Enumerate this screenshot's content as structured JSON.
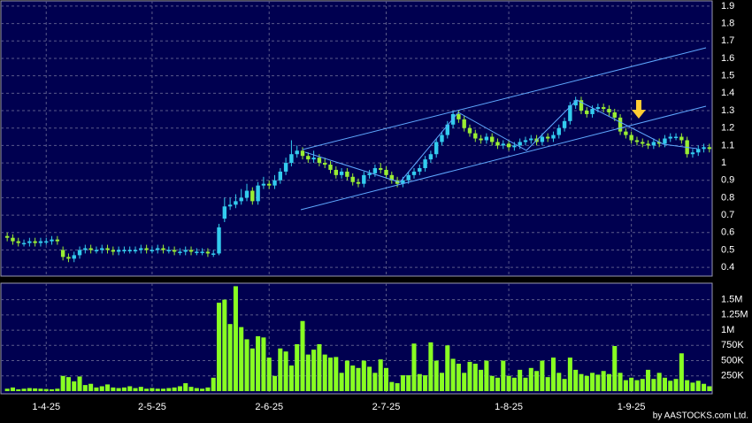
{
  "chart_data": {
    "type": "candlestick",
    "categories": [
      null,
      null,
      null,
      null,
      null,
      null,
      null,
      "1-4-25",
      null,
      null,
      null,
      null,
      null,
      null,
      null,
      null,
      null,
      null,
      null,
      null,
      null,
      null,
      null,
      null,
      null,
      null,
      "2-5-25",
      null,
      null,
      null,
      null,
      null,
      null,
      null,
      null,
      null,
      null,
      null,
      null,
      null,
      null,
      null,
      null,
      null,
      null,
      null,
      null,
      "2-6-25",
      null,
      null,
      null,
      null,
      null,
      null,
      null,
      null,
      null,
      null,
      null,
      null,
      null,
      null,
      null,
      null,
      null,
      null,
      null,
      null,
      "2-7-25",
      null,
      null,
      null,
      null,
      null,
      null,
      null,
      null,
      null,
      null,
      null,
      null,
      null,
      null,
      null,
      null,
      null,
      null,
      null,
      null,
      null,
      "1-8-25",
      null,
      null,
      null,
      null,
      null,
      null,
      null,
      null,
      null,
      null,
      null,
      null,
      null,
      null,
      null,
      null,
      null,
      null,
      null,
      null,
      null,
      "1-9-25",
      null,
      null,
      null,
      null,
      null,
      null,
      null,
      null,
      null,
      null,
      null,
      null,
      null,
      null
    ],
    "open": [
      0.58,
      0.57,
      0.55,
      0.54,
      0.54,
      0.55,
      0.54,
      0.55,
      0.55,
      0.56,
      0.5,
      0.46,
      0.45,
      0.47,
      0.5,
      0.51,
      0.5,
      0.5,
      0.51,
      0.5,
      0.49,
      0.5,
      0.5,
      0.5,
      0.5,
      0.51,
      0.5,
      0.5,
      0.51,
      0.5,
      0.5,
      0.49,
      0.49,
      0.5,
      0.49,
      0.49,
      0.49,
      0.48,
      0.48,
      0.68,
      0.75,
      0.76,
      0.78,
      0.8,
      0.84,
      0.78,
      0.87,
      0.88,
      0.87,
      0.9,
      0.95,
      1.0,
      1.05,
      1.07,
      1.04,
      1.02,
      1.03,
      1.0,
      0.99,
      0.96,
      0.93,
      0.95,
      0.92,
      0.89,
      0.88,
      0.93,
      0.94,
      0.97,
      0.96,
      0.93,
      0.9,
      0.88,
      0.9,
      0.93,
      0.95,
      0.97,
      1.02,
      1.05,
      1.12,
      1.16,
      1.22,
      1.28,
      1.25,
      1.2,
      1.17,
      1.14,
      1.13,
      1.15,
      1.12,
      1.1,
      1.11,
      1.09,
      1.1,
      1.12,
      1.13,
      1.14,
      1.12,
      1.15,
      1.14,
      1.16,
      1.2,
      1.24,
      1.33,
      1.36,
      1.3,
      1.28,
      1.31,
      1.32,
      1.31,
      1.29,
      1.26,
      1.18,
      1.16,
      1.13,
      1.12,
      1.11,
      1.1,
      1.12,
      1.11,
      1.14,
      1.15,
      1.15,
      1.13,
      1.05,
      1.06,
      1.08,
      1.09
    ],
    "high": [
      0.6,
      0.59,
      0.57,
      0.56,
      0.57,
      0.57,
      0.57,
      0.57,
      0.58,
      0.58,
      0.52,
      0.48,
      0.49,
      0.52,
      0.53,
      0.53,
      0.52,
      0.53,
      0.53,
      0.52,
      0.52,
      0.52,
      0.52,
      0.52,
      0.53,
      0.53,
      0.52,
      0.53,
      0.53,
      0.52,
      0.52,
      0.51,
      0.52,
      0.52,
      0.51,
      0.51,
      0.51,
      0.5,
      0.65,
      0.8,
      0.8,
      0.82,
      0.85,
      0.88,
      0.86,
      0.89,
      0.92,
      0.9,
      0.93,
      0.97,
      1.03,
      1.13,
      1.1,
      1.09,
      1.06,
      1.07,
      1.05,
      1.03,
      1.01,
      0.98,
      0.97,
      0.97,
      0.94,
      0.91,
      0.95,
      0.96,
      0.99,
      1.0,
      0.98,
      0.95,
      0.92,
      0.92,
      0.95,
      0.97,
      0.99,
      1.04,
      1.07,
      1.14,
      1.18,
      1.24,
      1.3,
      1.3,
      1.27,
      1.22,
      1.19,
      1.16,
      1.17,
      1.17,
      1.14,
      1.13,
      1.13,
      1.12,
      1.14,
      1.15,
      1.16,
      1.16,
      1.17,
      1.17,
      1.18,
      1.22,
      1.26,
      1.35,
      1.38,
      1.38,
      1.32,
      1.33,
      1.34,
      1.34,
      1.33,
      1.31,
      1.28,
      1.2,
      1.18,
      1.15,
      1.14,
      1.13,
      1.14,
      1.14,
      1.16,
      1.17,
      1.17,
      1.17,
      1.15,
      1.08,
      1.1,
      1.11,
      1.11
    ],
    "low": [
      0.55,
      0.53,
      0.52,
      0.52,
      0.52,
      0.52,
      0.52,
      0.53,
      0.53,
      0.53,
      0.44,
      0.43,
      0.43,
      0.45,
      0.48,
      0.48,
      0.48,
      0.48,
      0.48,
      0.47,
      0.47,
      0.48,
      0.48,
      0.48,
      0.48,
      0.48,
      0.48,
      0.48,
      0.48,
      0.48,
      0.47,
      0.47,
      0.47,
      0.47,
      0.47,
      0.47,
      0.46,
      0.46,
      0.47,
      0.66,
      0.73,
      0.74,
      0.76,
      0.78,
      0.76,
      0.76,
      0.85,
      0.85,
      0.85,
      0.88,
      0.93,
      0.98,
      1.03,
      1.02,
      1.0,
      1.0,
      0.98,
      0.97,
      0.94,
      0.91,
      0.91,
      0.9,
      0.87,
      0.86,
      0.86,
      0.91,
      0.92,
      0.94,
      0.91,
      0.88,
      0.86,
      0.86,
      0.88,
      0.91,
      0.93,
      0.95,
      1.0,
      1.03,
      1.1,
      1.14,
      1.2,
      1.23,
      1.18,
      1.15,
      1.12,
      1.11,
      1.11,
      1.1,
      1.08,
      1.08,
      1.07,
      1.07,
      1.08,
      1.1,
      1.11,
      1.1,
      1.1,
      1.12,
      1.12,
      1.14,
      1.18,
      1.22,
      1.31,
      1.28,
      1.26,
      1.26,
      1.29,
      1.29,
      1.27,
      1.24,
      1.16,
      1.14,
      1.11,
      1.1,
      1.09,
      1.08,
      1.08,
      1.09,
      1.09,
      1.12,
      1.13,
      1.11,
      1.03,
      1.03,
      1.04,
      1.06,
      1.06
    ],
    "close": [
      0.57,
      0.55,
      0.54,
      0.54,
      0.55,
      0.54,
      0.55,
      0.55,
      0.56,
      0.55,
      0.46,
      0.45,
      0.47,
      0.5,
      0.51,
      0.5,
      0.5,
      0.51,
      0.5,
      0.49,
      0.5,
      0.5,
      0.5,
      0.5,
      0.51,
      0.5,
      0.5,
      0.51,
      0.5,
      0.5,
      0.49,
      0.49,
      0.5,
      0.49,
      0.49,
      0.49,
      0.48,
      0.48,
      0.63,
      0.75,
      0.76,
      0.78,
      0.8,
      0.84,
      0.78,
      0.87,
      0.88,
      0.87,
      0.9,
      0.95,
      1.0,
      1.05,
      1.07,
      1.04,
      1.02,
      1.03,
      1.0,
      0.99,
      0.96,
      0.93,
      0.95,
      0.92,
      0.89,
      0.88,
      0.93,
      0.94,
      0.97,
      0.96,
      0.93,
      0.9,
      0.88,
      0.9,
      0.93,
      0.95,
      0.97,
      1.02,
      1.05,
      1.12,
      1.16,
      1.22,
      1.28,
      1.25,
      1.2,
      1.17,
      1.14,
      1.13,
      1.15,
      1.12,
      1.1,
      1.11,
      1.09,
      1.1,
      1.12,
      1.13,
      1.14,
      1.12,
      1.15,
      1.14,
      1.16,
      1.2,
      1.24,
      1.33,
      1.36,
      1.3,
      1.28,
      1.31,
      1.32,
      1.31,
      1.29,
      1.26,
      1.18,
      1.16,
      1.13,
      1.12,
      1.11,
      1.1,
      1.12,
      1.11,
      1.14,
      1.15,
      1.15,
      1.13,
      1.05,
      1.06,
      1.08,
      1.09,
      1.08
    ],
    "volume": [
      40000,
      60000,
      30000,
      40000,
      50000,
      45000,
      40000,
      35000,
      30000,
      40000,
      250000,
      230000,
      160000,
      240000,
      100000,
      120000,
      60000,
      80000,
      110000,
      60000,
      50000,
      60000,
      80000,
      50000,
      70000,
      40000,
      50000,
      40000,
      40000,
      50000,
      60000,
      80000,
      130000,
      70000,
      50000,
      40000,
      60000,
      220000,
      1450000,
      1500000,
      1100000,
      1720000,
      1050000,
      850000,
      700000,
      900000,
      880000,
      550000,
      250000,
      700000,
      650000,
      420000,
      770000,
      1150000,
      600000,
      680000,
      770000,
      600000,
      550000,
      560000,
      300000,
      500000,
      420000,
      380000,
      500000,
      400000,
      300000,
      520000,
      380000,
      150000,
      130000,
      260000,
      260000,
      780000,
      280000,
      260000,
      800000,
      500000,
      300000,
      750000,
      530000,
      450000,
      300000,
      480000,
      450000,
      350000,
      500000,
      250000,
      220000,
      500000,
      250000,
      220000,
      350000,
      220000,
      380000,
      330000,
      500000,
      230000,
      550000,
      300000,
      200000,
      550000,
      350000,
      280000,
      250000,
      300000,
      270000,
      330000,
      280000,
      740000,
      300000,
      180000,
      220000,
      180000,
      200000,
      350000,
      200000,
      300000,
      220000,
      170000,
      200000,
      620000,
      180000,
      140000,
      170000,
      120000,
      80000
    ],
    "up_color": "#33ccee",
    "down_color": "#99ee33",
    "volume_color": "#88ff22",
    "ylim": [
      0.35,
      1.925
    ],
    "yticks": [
      0.4,
      0.5,
      0.6,
      0.7,
      0.8,
      0.9,
      1,
      1.1,
      1.2,
      1.3,
      1.4,
      1.5,
      1.6,
      1.7,
      1.8,
      1.9
    ],
    "volume_ylim": [
      0,
      1770000
    ],
    "volume_ticks": [
      {
        "value": 250000,
        "label": "250K"
      },
      {
        "value": 500000,
        "label": "500K"
      },
      {
        "value": 750000,
        "label": "750K"
      },
      {
        "value": 1000000,
        "label": "1M"
      },
      {
        "value": 1250000,
        "label": "1.25M"
      },
      {
        "value": 1500000,
        "label": "1.5M"
      }
    ],
    "grid": true,
    "source": "by AASTOCKS.com Ltd."
  }
}
